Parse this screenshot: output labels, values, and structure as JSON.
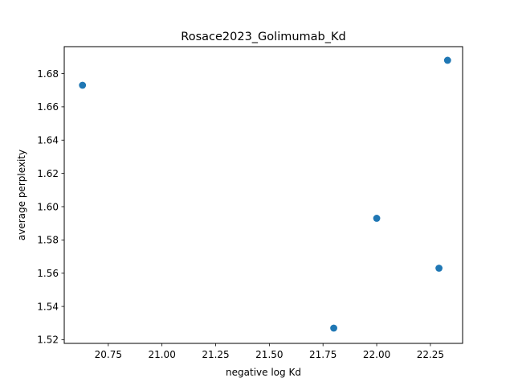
{
  "chart_data": {
    "type": "scatter",
    "title": "Rosace2023_Golimumab_Kd",
    "xlabel": "negative log Kd",
    "ylabel": "average perplexity",
    "xlim": [
      20.545,
      22.4
    ],
    "ylim": [
      1.5178,
      1.6962
    ],
    "xticks": [
      20.75,
      21.0,
      21.25,
      21.5,
      21.75,
      22.0,
      22.25
    ],
    "xtick_labels": [
      "20.75",
      "21.00",
      "21.25",
      "21.50",
      "21.75",
      "22.00",
      "22.25"
    ],
    "yticks": [
      1.52,
      1.54,
      1.56,
      1.58,
      1.6,
      1.62,
      1.64,
      1.66,
      1.68
    ],
    "ytick_labels": [
      "1.52",
      "1.54",
      "1.56",
      "1.58",
      "1.60",
      "1.62",
      "1.64",
      "1.66",
      "1.68"
    ],
    "grid": false,
    "marker_color": "#1f77b4",
    "points": [
      {
        "x": 20.63,
        "y": 1.673
      },
      {
        "x": 21.8,
        "y": 1.527
      },
      {
        "x": 22.0,
        "y": 1.593
      },
      {
        "x": 22.29,
        "y": 1.563
      },
      {
        "x": 22.33,
        "y": 1.688
      }
    ]
  }
}
